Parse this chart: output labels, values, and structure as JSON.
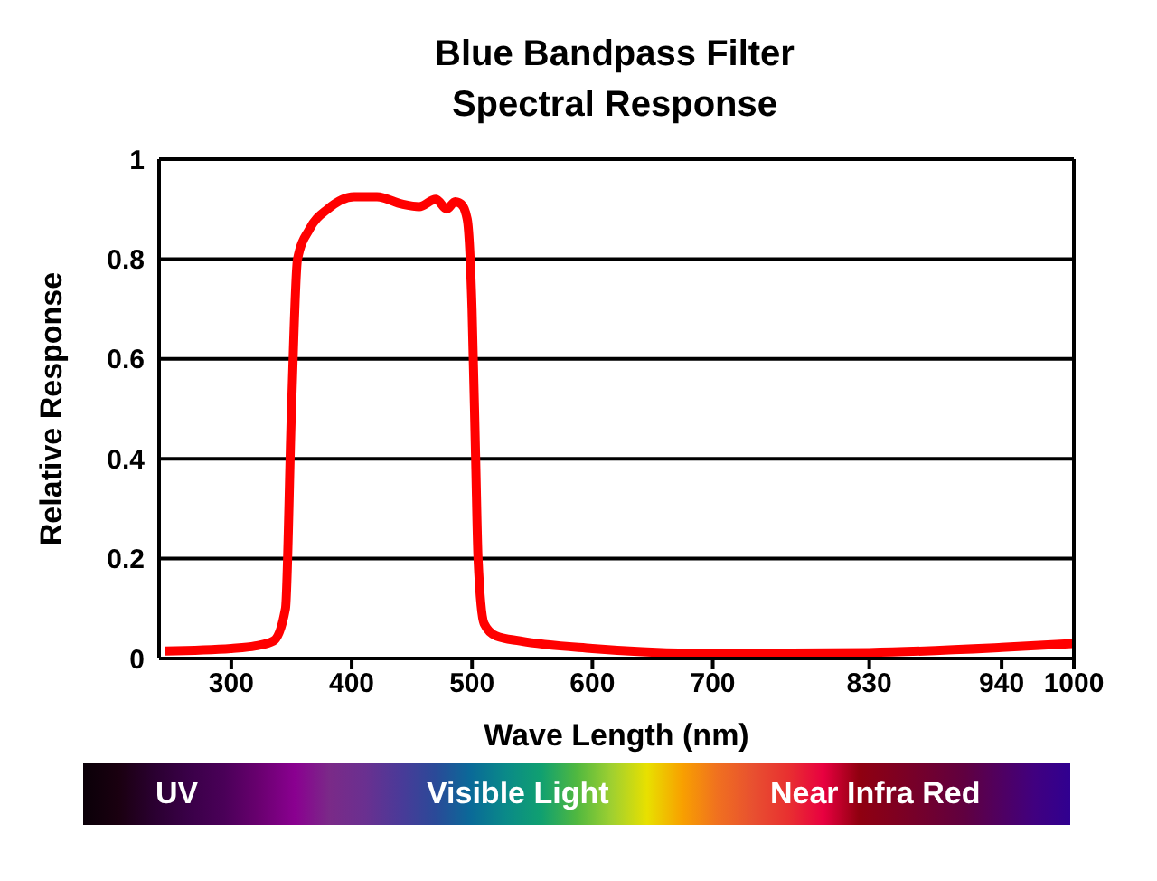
{
  "chart_data": {
    "type": "line",
    "title": "Blue Bandpass Filter",
    "subtitle": "Spectral Response",
    "xlabel": "Wave Length (nm)",
    "ylabel": "Relative Response",
    "x": [
      245,
      300,
      320,
      335,
      345,
      350,
      355,
      365,
      380,
      402,
      421,
      442,
      456,
      470,
      479,
      486,
      491,
      496,
      500,
      503,
      505,
      510,
      520,
      540,
      600,
      700,
      830,
      940,
      1000
    ],
    "series": [
      {
        "color": "#ff0000",
        "values": [
          0.015,
          0.02,
          0.025,
          0.035,
          0.1,
          0.5,
          0.8,
          0.86,
          0.9,
          0.925,
          0.925,
          0.91,
          0.905,
          0.92,
          0.9,
          0.915,
          0.91,
          0.88,
          0.7,
          0.4,
          0.2,
          0.07,
          0.045,
          0.035,
          0.02,
          0.01,
          0.012,
          0.022,
          0.03
        ]
      }
    ],
    "xlim": [
      240,
      1000
    ],
    "xticks": [
      300,
      400,
      500,
      600,
      700,
      830,
      940,
      1000
    ],
    "ylim": [
      0,
      1
    ],
    "yticks": [
      0,
      0.2,
      0.4,
      0.6,
      0.8,
      1
    ],
    "grid": "y",
    "legend": false,
    "marker": "none",
    "line_style": "solid",
    "annotations": [
      "UV",
      "Visible Light",
      "Near Infra Red"
    ]
  }
}
